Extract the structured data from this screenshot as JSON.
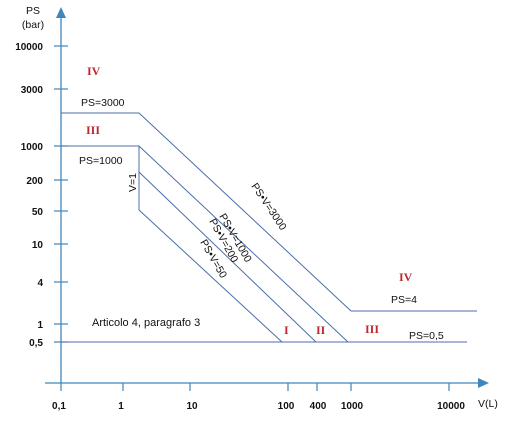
{
  "axes": {
    "y_title_line1": "PS",
    "y_title_line2": "(bar)",
    "x_title": "V(L)",
    "y_ticks": [
      "10000",
      "3000",
      "1000",
      "200",
      "50",
      "10",
      "4",
      "1",
      "0,5"
    ],
    "x_ticks": [
      "0,1",
      "1",
      "10",
      "100",
      "400",
      "1000",
      "10000"
    ]
  },
  "limits": {
    "ps3000": "PS=3000",
    "ps1000": "PS=1000",
    "ps4": "PS=4",
    "ps05": "PS=0,5",
    "v1": "V=1",
    "psv3000": "PS•V=3000",
    "psv1000": "PS•V=1000",
    "psv200": "PS•V=200",
    "psv50": "PS•V=50"
  },
  "categories": {
    "iv_top": "IV",
    "iii_top": "III",
    "iv_right": "IV",
    "i": "I",
    "ii": "II",
    "iii": "III"
  },
  "note": "Articolo 4, paragrafo 3",
  "colors": {
    "axis": "#3f86bd",
    "line": "#4a6fa8",
    "category": "#c0262d"
  }
}
